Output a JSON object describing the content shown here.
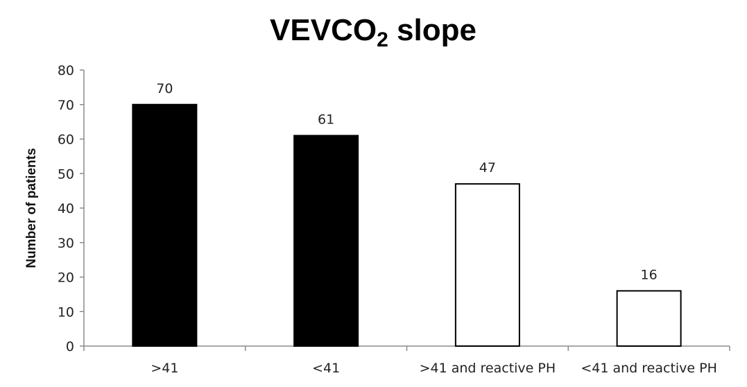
{
  "chart_data": {
    "type": "bar",
    "title": "VEVCO",
    "title_subscript": "2",
    "title_suffix": " slope",
    "xlabel": "",
    "ylabel": "Number of patients",
    "ylim": [
      0,
      80
    ],
    "yticks": [
      0,
      10,
      20,
      30,
      40,
      50,
      60,
      70,
      80
    ],
    "categories": [
      ">41",
      "<41",
      ">41 and reactive PH",
      "<41 and reactive PH"
    ],
    "values": [
      70,
      61,
      47,
      16
    ],
    "data_labels": [
      "70",
      "61",
      "47",
      "16"
    ],
    "bar_fills": [
      "#000000",
      "#000000",
      "#ffffff",
      "#ffffff"
    ],
    "bar_outline": "#000000",
    "axis_color": "#8c8c8c",
    "grid": false,
    "legend": "none"
  }
}
